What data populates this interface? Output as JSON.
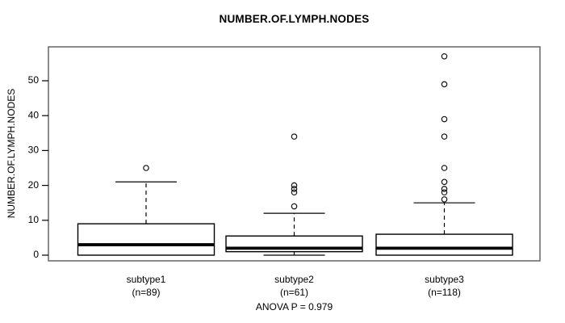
{
  "chart_data": {
    "type": "boxplot",
    "title": "NUMBER.OF.LYMPH.NODES",
    "ylabel": "NUMBER.OF.LYMPH.NODES",
    "xlabel": "",
    "anova_note": "ANOVA P = 0.979",
    "ylim": [
      0,
      57
    ],
    "yticks": [
      0,
      10,
      20,
      30,
      40,
      50
    ],
    "grid": false,
    "legend": null,
    "groups": [
      {
        "label": "subtype1",
        "n_label": "(n=89)",
        "stats": {
          "whisker_low": 0,
          "q1": 0,
          "median": 3,
          "q3": 9,
          "whisker_high": 21
        },
        "outliers": [
          25
        ]
      },
      {
        "label": "subtype2",
        "n_label": "(n=61)",
        "stats": {
          "whisker_low": 0,
          "q1": 1,
          "median": 2,
          "q3": 5.5,
          "whisker_high": 12
        },
        "outliers": [
          14,
          18,
          19,
          20,
          34
        ]
      },
      {
        "label": "subtype3",
        "n_label": "(n=118)",
        "stats": {
          "whisker_low": 0,
          "q1": 0,
          "median": 2,
          "q3": 6,
          "whisker_high": 15
        },
        "outliers": [
          16,
          18,
          19,
          21,
          25,
          34,
          39,
          49,
          57
        ]
      }
    ],
    "colors": {
      "line": "#000000",
      "box_fill": "#ffffff",
      "plot_border": "#5a5a5a",
      "background": "#ffffff"
    }
  }
}
